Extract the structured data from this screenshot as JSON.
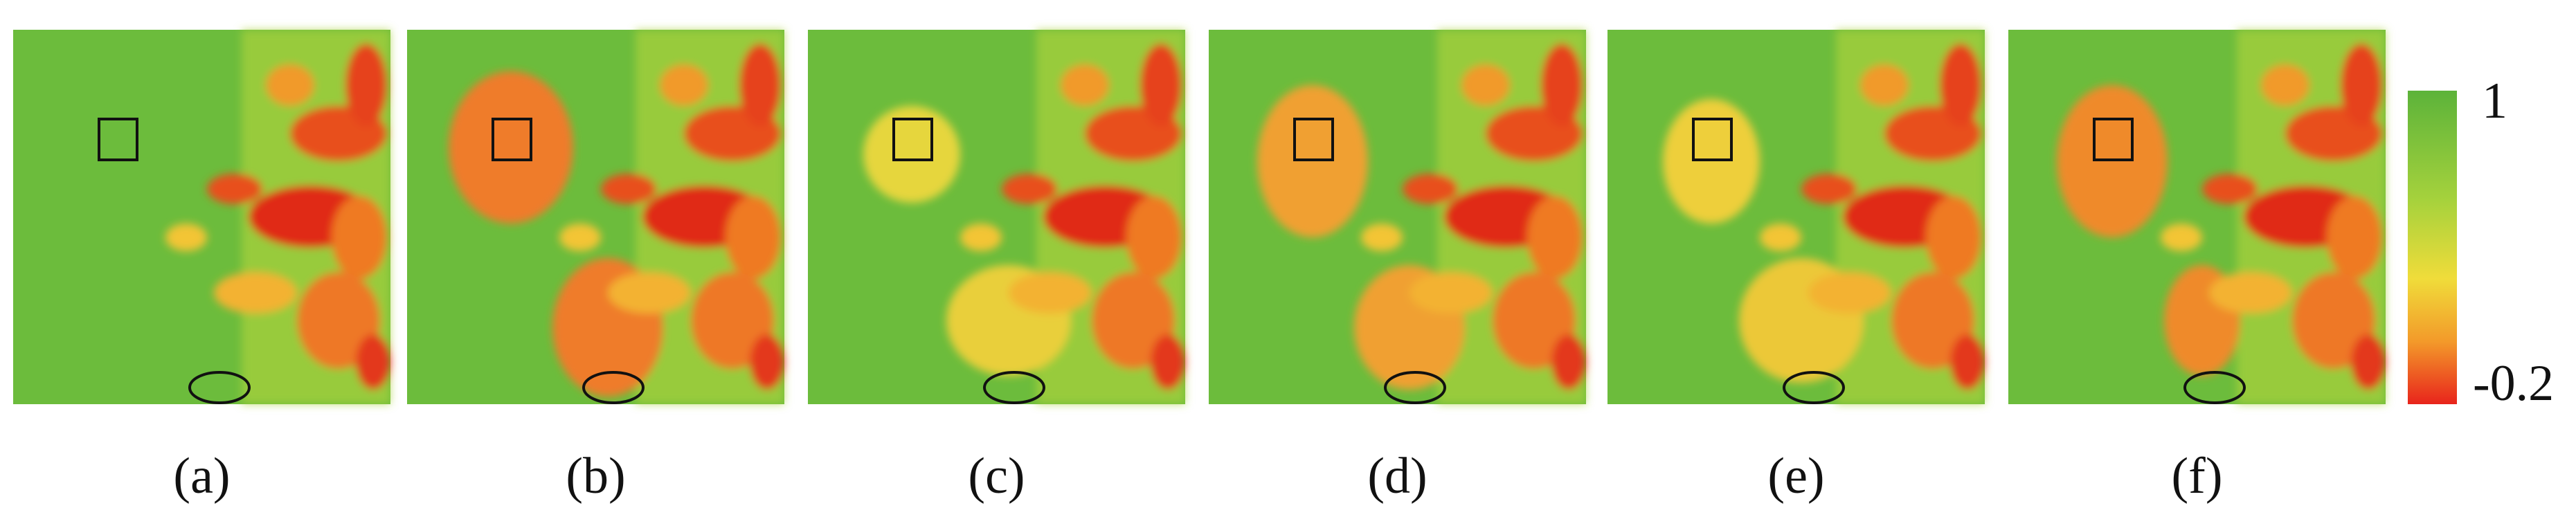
{
  "panels": [
    {
      "label": "(a)"
    },
    {
      "label": "(b)"
    },
    {
      "label": "(c)"
    },
    {
      "label": "(d)"
    },
    {
      "label": "(e)"
    },
    {
      "label": "(f)"
    }
  ],
  "colorbar": {
    "max_label": "1",
    "min_label": "-0.2"
  }
}
